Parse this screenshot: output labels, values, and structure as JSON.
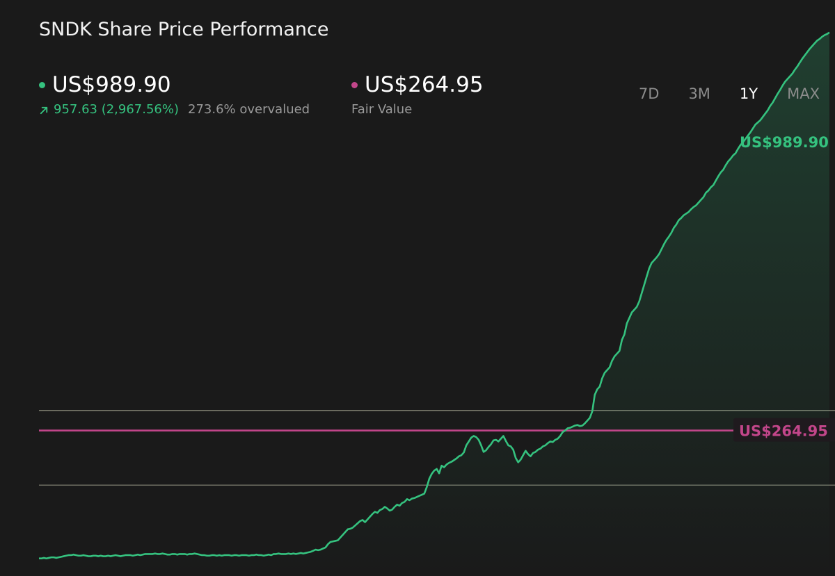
{
  "header": {
    "title": "SNDK Share Price Performance"
  },
  "current_price": {
    "value": "US$989.90",
    "change": "957.63 (2,967.56%)",
    "valuation": "273.6% overvalued",
    "color": "#35c27f"
  },
  "fair_value": {
    "value": "US$264.95",
    "label": "Fair Value",
    "color": "#c2468a"
  },
  "tabs": [
    {
      "label": "7D",
      "active": false
    },
    {
      "label": "3M",
      "active": false
    },
    {
      "label": "1Y",
      "active": true
    },
    {
      "label": "MAX",
      "active": false
    }
  ],
  "chart_data": {
    "type": "area",
    "ylim": [
      0,
      1049
    ],
    "reference_lines": [
      {
        "value": 301.5,
        "color": "#8a8a7a"
      },
      {
        "value": 165.5,
        "color": "#8a8a7a"
      }
    ],
    "fair_value_line": {
      "value": 264.95,
      "label": "US$264.95",
      "color": "#c2468a"
    },
    "last_price_label": "US$989.90",
    "series": [
      {
        "color": "#35c27f",
        "values": [
          32,
          32,
          33,
          32,
          33,
          34,
          34,
          33,
          34,
          35,
          36,
          37,
          38,
          38,
          39,
          38,
          37,
          37,
          38,
          37,
          36,
          36,
          37,
          37,
          36,
          37,
          36,
          36,
          37,
          36,
          37,
          38,
          37,
          36,
          37,
          38,
          38,
          38,
          37,
          38,
          39,
          38,
          39,
          40,
          40,
          40,
          40,
          41,
          40,
          40,
          41,
          40,
          39,
          39,
          40,
          40,
          39,
          40,
          40,
          40,
          39,
          40,
          40,
          41,
          40,
          39,
          38,
          38,
          37,
          37,
          38,
          38,
          37,
          38,
          37,
          38,
          38,
          38,
          37,
          38,
          38,
          37,
          38,
          38,
          38,
          37,
          38,
          38,
          39,
          38,
          38,
          37,
          38,
          39,
          38,
          40,
          40,
          41,
          40,
          40,
          40,
          41,
          40,
          41,
          40,
          41,
          42,
          41,
          42,
          43,
          44,
          46,
          48,
          47,
          48,
          50,
          52,
          58,
          62,
          63,
          64,
          65,
          70,
          75,
          80,
          85,
          86,
          88,
          92,
          96,
          100,
          102,
          98,
          103,
          108,
          113,
          117,
          115,
          120,
          122,
          126,
          123,
          119,
          121,
          126,
          130,
          128,
          133,
          135,
          140,
          138,
          141,
          142,
          144,
          146,
          148,
          150,
          162,
          177,
          186,
          192,
          195,
          187,
          201,
          198,
          203,
          206,
          208,
          211,
          214,
          218,
          220,
          225,
          238,
          245,
          252,
          255,
          253,
          248,
          238,
          226,
          229,
          235,
          240,
          247,
          248,
          245,
          250,
          255,
          246,
          238,
          236,
          230,
          215,
          207,
          212,
          220,
          228,
          222,
          218,
          224,
          226,
          230,
          232,
          236,
          238,
          242,
          245,
          244,
          248,
          250,
          255,
          262,
          265,
          269,
          270,
          272,
          274,
          275,
          273,
          274,
          278,
          283,
          288,
          300,
          330,
          340,
          345,
          360,
          370,
          375,
          380,
          392,
          400,
          405,
          410,
          430,
          440,
          460,
          470,
          480,
          485,
          490,
          500,
          515,
          530,
          545,
          560,
          570,
          575,
          580,
          586,
          595,
          604,
          612,
          618,
          625,
          634,
          640,
          648,
          652,
          657,
          660,
          663,
          668,
          672,
          675,
          680,
          685,
          690,
          698,
          702,
          708,
          712,
          720,
          728,
          735,
          740,
          748,
          755,
          760,
          766,
          770,
          778,
          785,
          790,
          796,
          802,
          808,
          815,
          822,
          826,
          830,
          836,
          842,
          848,
          856,
          862,
          870,
          878,
          885,
          893,
          900,
          905,
          910,
          915,
          922,
          928,
          935,
          942,
          948,
          954,
          960,
          965,
          970,
          975,
          978,
          982,
          985,
          987,
          989.9
        ]
      }
    ]
  }
}
